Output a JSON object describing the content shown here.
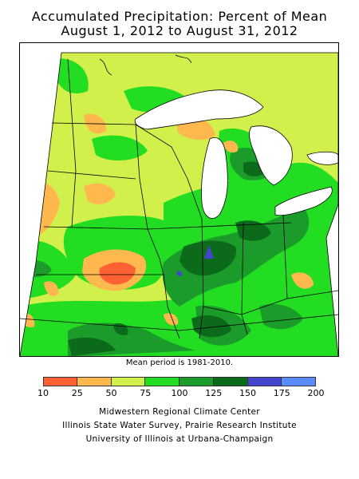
{
  "title": {
    "line1": "Accumulated Precipitation: Percent of Mean",
    "line2": "August 1, 2012 to August 31, 2012"
  },
  "map": {
    "colors": {
      "c10_25": "#ff6133",
      "c25_50": "#ffb84d",
      "c50_75": "#d2f04b",
      "c75_100": "#22dd22",
      "c100_125": "#1a9b2a",
      "c125_150": "#0b6b1a",
      "c150_175": "#4444cc",
      "lake": "#ffffff",
      "outline": "#000000"
    }
  },
  "note": "Mean period is 1981-2010.",
  "legend": {
    "ticks": [
      "10",
      "25",
      "50",
      "75",
      "100",
      "125",
      "150",
      "175",
      "200"
    ],
    "colors": [
      "#ff6133",
      "#ffb84d",
      "#d2f04b",
      "#22dd22",
      "#1a9b2a",
      "#0b6b1a",
      "#4444cc",
      "#5a8cff"
    ]
  },
  "credits": [
    "Midwestern Regional Climate Center",
    "Illinois State Water Survey, Prairie Research Institute",
    "University of Illinois at Urbana-Champaign"
  ]
}
